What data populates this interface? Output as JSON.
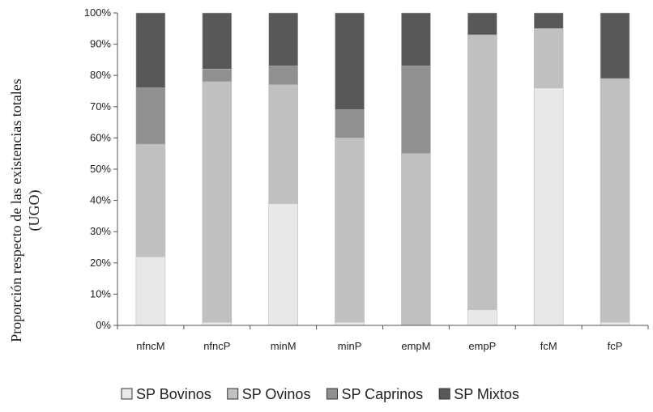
{
  "chart_data": {
    "type": "bar",
    "stacked": true,
    "percent": true,
    "categories": [
      "nfncM",
      "nfncP",
      "minM",
      "minP",
      "empM",
      "empP",
      "fcM",
      "fcP"
    ],
    "series": [
      {
        "name": "SP Bovinos",
        "color": "#e8e8e8",
        "values": [
          22,
          1,
          39,
          1,
          0,
          5,
          76,
          1
        ]
      },
      {
        "name": "SP Ovinos",
        "color": "#c0c0c0",
        "values": [
          36,
          77,
          38,
          59,
          55,
          88,
          19,
          78
        ]
      },
      {
        "name": "SP Caprinos",
        "color": "#909090",
        "values": [
          18,
          4,
          6,
          9,
          28,
          0,
          0,
          0
        ]
      },
      {
        "name": "SP Mixtos",
        "color": "#585858",
        "values": [
          24,
          18,
          17,
          31,
          17,
          7,
          5,
          21
        ]
      }
    ],
    "ylabel_lines": [
      "Proporción respecto de las existencias totales",
      "(UGO)"
    ],
    "ylim": [
      0,
      100
    ],
    "yticks": [
      "0%",
      "10%",
      "20%",
      "30%",
      "40%",
      "50%",
      "60%",
      "70%",
      "80%",
      "90%",
      "100%"
    ],
    "legend_position": "bottom",
    "grid": false
  }
}
